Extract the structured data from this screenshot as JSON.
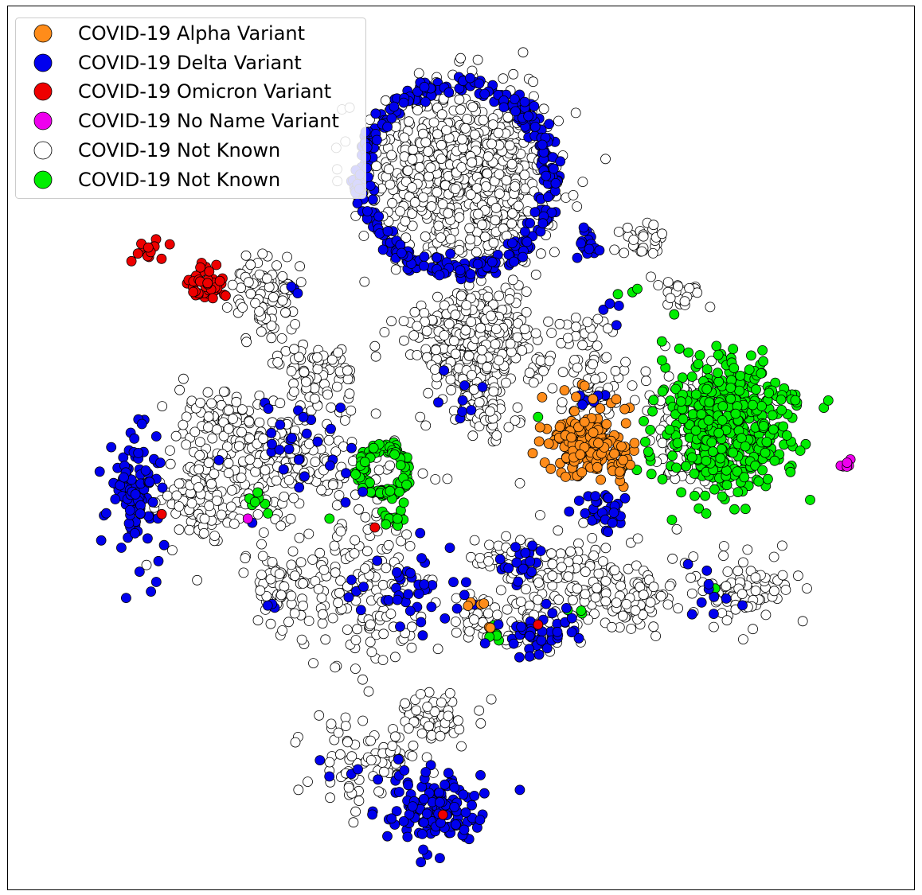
{
  "chart_data": {
    "type": "scatter",
    "title": "",
    "xlabel": "",
    "ylabel": "",
    "axes_visible": false,
    "grid": false,
    "xlim": [
      0,
      100
    ],
    "ylim": [
      0,
      100
    ],
    "legend_position": "top-left",
    "marker_edge_color": "#000000",
    "series": [
      {
        "name": "COVID-19 Alpha Variant",
        "color": "#ff8c1a",
        "clusters": [
          {
            "cx": 63.5,
            "cy": 51.0,
            "sx": 2.2,
            "sy": 2.2,
            "n": 160
          },
          {
            "cx": 67.0,
            "cy": 48.5,
            "sx": 1.6,
            "sy": 1.2,
            "n": 35
          },
          {
            "cx": 51.5,
            "cy": 32.0,
            "sx": 0.5,
            "sy": 0.5,
            "n": 4
          },
          {
            "cx": 53.0,
            "cy": 29.5,
            "sx": 0.3,
            "sy": 0.3,
            "n": 2
          }
        ]
      },
      {
        "name": "COVID-19 Delta Variant",
        "color": "#0000ee",
        "clusters": [
          {
            "ring": true,
            "cx": 49.5,
            "cy": 80.5,
            "r": 10.5,
            "rw": 1.2,
            "n": 340
          },
          {
            "cx": 14.0,
            "cy": 44.5,
            "sx": 1.5,
            "sy": 3.2,
            "n": 110
          },
          {
            "cx": 47.5,
            "cy": 9.0,
            "sx": 2.8,
            "sy": 2.4,
            "n": 130
          },
          {
            "cx": 59.0,
            "cy": 29.0,
            "sx": 2.5,
            "sy": 1.5,
            "n": 45
          },
          {
            "cx": 65.5,
            "cy": 43.0,
            "sx": 1.6,
            "sy": 1.2,
            "n": 30
          },
          {
            "cx": 45.0,
            "cy": 34.0,
            "sx": 3.5,
            "sy": 2.5,
            "n": 40
          },
          {
            "cx": 56.5,
            "cy": 36.5,
            "sx": 1.5,
            "sy": 1.5,
            "n": 20
          },
          {
            "cx": 33.0,
            "cy": 49.0,
            "sx": 4.0,
            "sy": 3.5,
            "n": 30
          },
          {
            "cx": 64.0,
            "cy": 73.5,
            "sx": 1.0,
            "sy": 1.0,
            "n": 18
          },
          {
            "cx": 51.0,
            "cy": 54.5,
            "sx": 1.5,
            "sy": 1.5,
            "n": 8
          },
          {
            "cx": 64.0,
            "cy": 55.5,
            "sx": 1.5,
            "sy": 1.2,
            "n": 6
          },
          {
            "cx": 78.5,
            "cy": 33.5,
            "sx": 3.0,
            "sy": 2.0,
            "n": 10
          },
          {
            "cx": 38.5,
            "cy": 14.0,
            "sx": 2.0,
            "sy": 1.5,
            "n": 6
          },
          {
            "cx": 65.5,
            "cy": 65.0,
            "sx": 1.2,
            "sy": 1.5,
            "n": 4
          },
          {
            "cx": 29.0,
            "cy": 32.0,
            "sx": 1.5,
            "sy": 1.5,
            "n": 3
          },
          {
            "cx": 31.5,
            "cy": 67.5,
            "sx": 1.0,
            "sy": 1.0,
            "n": 3
          }
        ]
      },
      {
        "name": "COVID-19 Omicron Variant",
        "color": "#ee0000",
        "clusters": [
          {
            "cx": 22.0,
            "cy": 68.5,
            "sx": 1.2,
            "sy": 0.9,
            "n": 45
          },
          {
            "cx": 15.8,
            "cy": 72.5,
            "sx": 0.8,
            "sy": 0.6,
            "n": 15
          },
          {
            "cx": 17.0,
            "cy": 42.5,
            "sx": 0.1,
            "sy": 0.1,
            "n": 1
          },
          {
            "cx": 40.5,
            "cy": 41.0,
            "sx": 0.1,
            "sy": 0.1,
            "n": 1
          },
          {
            "cx": 58.5,
            "cy": 30.0,
            "sx": 0.1,
            "sy": 0.1,
            "n": 1
          },
          {
            "cx": 48.0,
            "cy": 8.5,
            "sx": 0.1,
            "sy": 0.1,
            "n": 1
          }
        ]
      },
      {
        "name": "COVID-19 No Name Variant",
        "color": "#ee00ee",
        "clusters": [
          {
            "cx": 92.5,
            "cy": 48.0,
            "sx": 0.4,
            "sy": 0.4,
            "n": 6
          },
          {
            "cx": 26.5,
            "cy": 42.0,
            "sx": 0.1,
            "sy": 0.1,
            "n": 1
          }
        ]
      },
      {
        "name": "COVID-19 Not Known",
        "color": "#ffffff",
        "clusters": [
          {
            "cx": 50.0,
            "cy": 81.0,
            "sx": 4.8,
            "sy": 4.5,
            "n": 900
          },
          {
            "cx": 51.5,
            "cy": 62.5,
            "sx": 2.8,
            "sy": 2.6,
            "n": 500
          },
          {
            "cx": 76.5,
            "cy": 51.5,
            "sx": 3.0,
            "sy": 3.0,
            "n": 220
          },
          {
            "cx": 28.5,
            "cy": 67.5,
            "sx": 2.0,
            "sy": 2.5,
            "n": 90
          },
          {
            "cx": 34.0,
            "cy": 58.0,
            "sx": 2.5,
            "sy": 2.2,
            "n": 80
          },
          {
            "cx": 23.0,
            "cy": 54.0,
            "sx": 2.5,
            "sy": 1.8,
            "n": 60
          },
          {
            "cx": 30.0,
            "cy": 48.5,
            "sx": 4.0,
            "sy": 3.0,
            "n": 200
          },
          {
            "cx": 22.0,
            "cy": 44.5,
            "sx": 2.8,
            "sy": 3.5,
            "n": 130
          },
          {
            "cx": 30.0,
            "cy": 34.0,
            "sx": 1.8,
            "sy": 2.8,
            "n": 70
          },
          {
            "cx": 39.5,
            "cy": 34.0,
            "sx": 3.5,
            "sy": 4.5,
            "n": 150
          },
          {
            "cx": 62.5,
            "cy": 35.0,
            "sx": 3.5,
            "sy": 3.0,
            "n": 120
          },
          {
            "cx": 55.0,
            "cy": 37.5,
            "sx": 1.5,
            "sy": 1.5,
            "n": 30
          },
          {
            "cx": 69.0,
            "cy": 33.0,
            "sx": 2.5,
            "sy": 2.0,
            "n": 70
          },
          {
            "cx": 81.0,
            "cy": 34.0,
            "sx": 3.0,
            "sy": 2.0,
            "n": 80
          },
          {
            "cx": 51.5,
            "cy": 31.0,
            "sx": 1.5,
            "sy": 1.5,
            "n": 30
          },
          {
            "cx": 57.0,
            "cy": 30.0,
            "sx": 2.0,
            "sy": 1.5,
            "n": 30
          },
          {
            "cx": 40.0,
            "cy": 15.0,
            "sx": 3.0,
            "sy": 2.5,
            "n": 80
          },
          {
            "cx": 47.5,
            "cy": 19.5,
            "sx": 2.5,
            "sy": 1.5,
            "n": 60
          },
          {
            "cx": 52.5,
            "cy": 54.0,
            "sx": 1.5,
            "sy": 1.8,
            "n": 60
          },
          {
            "cx": 64.5,
            "cy": 56.5,
            "sx": 1.8,
            "sy": 1.8,
            "n": 60
          },
          {
            "cx": 70.5,
            "cy": 73.5,
            "sx": 1.2,
            "sy": 1.2,
            "n": 30
          },
          {
            "cx": 74.5,
            "cy": 67.5,
            "sx": 1.0,
            "sy": 1.0,
            "n": 25
          },
          {
            "cx": 63.5,
            "cy": 63.0,
            "sx": 1.2,
            "sy": 1.2,
            "n": 25
          },
          {
            "cx": 59.0,
            "cy": 59.5,
            "sx": 1.2,
            "sy": 1.2,
            "n": 20
          },
          {
            "cx": 45.0,
            "cy": 51.0,
            "sx": 4.8,
            "sy": 5.5,
            "n": 2
          },
          {
            "cx": 40.5,
            "cy": 61.5,
            "sx": 0.1,
            "sy": 0.1,
            "n": 1
          },
          {
            "cx": 45.5,
            "cy": 53.5,
            "sx": 0.1,
            "sy": 0.1,
            "n": 1
          },
          {
            "cx": 48.5,
            "cy": 46.5,
            "sx": 0.1,
            "sy": 0.1,
            "n": 1
          },
          {
            "cx": 56.5,
            "cy": 46.0,
            "sx": 0.1,
            "sy": 0.1,
            "n": 1
          },
          {
            "cx": 41.5,
            "cy": 47.5,
            "sx": 0.5,
            "sy": 0.5,
            "n": 4
          }
        ]
      },
      {
        "name": "COVID-19 Not Known",
        "color": "#00ee00",
        "clusters": [
          {
            "cx": 79.0,
            "cy": 52.5,
            "sx": 3.8,
            "sy": 4.0,
            "n": 450
          },
          {
            "ring": true,
            "cx": 41.5,
            "cy": 47.5,
            "r": 2.6,
            "rw": 0.7,
            "n": 120
          },
          {
            "cx": 42.5,
            "cy": 42.0,
            "sx": 0.9,
            "sy": 0.5,
            "n": 15
          },
          {
            "cx": 27.5,
            "cy": 44.5,
            "sx": 0.8,
            "sy": 0.8,
            "n": 8
          },
          {
            "cx": 53.5,
            "cy": 29.0,
            "sx": 0.7,
            "sy": 0.5,
            "n": 6
          },
          {
            "cx": 68.5,
            "cy": 67.5,
            "sx": 0.7,
            "sy": 0.3,
            "n": 3
          },
          {
            "cx": 63.0,
            "cy": 31.5,
            "sx": 0.6,
            "sy": 0.3,
            "n": 3
          },
          {
            "cx": 58.5,
            "cy": 53.5,
            "sx": 0.1,
            "sy": 0.1,
            "n": 1
          },
          {
            "cx": 78.0,
            "cy": 34.0,
            "sx": 0.3,
            "sy": 0.3,
            "n": 2
          },
          {
            "cx": 35.5,
            "cy": 42.0,
            "sx": 0.1,
            "sy": 0.1,
            "n": 1
          }
        ]
      }
    ]
  }
}
